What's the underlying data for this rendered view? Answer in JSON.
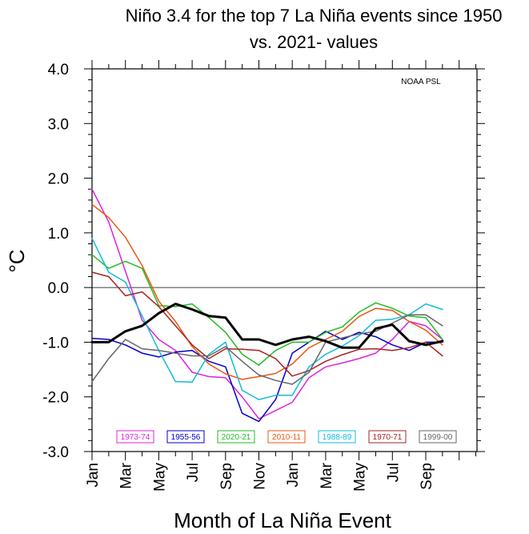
{
  "chart_data": {
    "type": "line",
    "title_line1": "Niño 3.4 for the top 7 La Niña events since 1950",
    "title_line2": "vs. 2021- values",
    "xlabel": "Month of La Niña Event",
    "ylabel": "°C",
    "credit": "NOAA PSL",
    "ylim": [
      -3.0,
      4.0
    ],
    "yticks": [
      "4.0",
      "3.0",
      "2.0",
      "1.0",
      "0.0",
      "-1.0",
      "-2.0",
      "-3.0"
    ],
    "ytick_values": [
      4,
      3,
      2,
      1,
      0,
      -1,
      -2,
      -3
    ],
    "xtick_labels": [
      "Jan",
      "Mar",
      "May",
      "Jul",
      "Sep",
      "Nov",
      "Jan",
      "Mar",
      "May",
      "Jul",
      "Sep"
    ],
    "xtick_index": [
      0,
      2,
      4,
      6,
      8,
      10,
      12,
      14,
      16,
      18,
      20
    ],
    "n_months": 22,
    "zero_line": true,
    "series": [
      {
        "name": "1973-74",
        "color": "#dd22dd",
        "width": 1.5,
        "values": [
          1.8,
          1.2,
          0.3,
          -0.6,
          -0.95,
          -1.15,
          -1.55,
          -1.63,
          -1.65,
          -2.0,
          -2.4,
          -2.25,
          -2.1,
          -1.65,
          -1.45,
          -1.38,
          -1.3,
          -1.2,
          -0.95,
          -0.62,
          -0.7,
          -0.95
        ]
      },
      {
        "name": "1955-56",
        "color": "#0000cc",
        "width": 1.5,
        "values": [
          -0.93,
          -0.95,
          -1.05,
          -1.2,
          -1.27,
          -1.18,
          -1.15,
          -1.35,
          -1.45,
          -2.3,
          -2.45,
          -2.05,
          -1.2,
          -1.0,
          -0.8,
          -0.95,
          -0.82,
          -0.9,
          -1.05,
          -1.15,
          -1.0,
          -1.0
        ]
      },
      {
        "name": "2020-21",
        "color": "#22bb22",
        "width": 1.5,
        "values": [
          0.6,
          0.35,
          0.48,
          0.35,
          -0.33,
          -0.35,
          -0.3,
          -0.55,
          -0.82,
          -1.22,
          -1.42,
          -1.15,
          -1.0,
          -1.0,
          -0.82,
          -0.72,
          -0.45,
          -0.28,
          -0.38,
          -0.52,
          -0.55,
          -0.95
        ]
      },
      {
        "name": "2010-11",
        "color": "#ee5511",
        "width": 1.5,
        "values": [
          1.52,
          1.28,
          0.92,
          0.4,
          -0.25,
          -0.62,
          -1.08,
          -1.4,
          -1.58,
          -1.68,
          -1.63,
          -1.57,
          -1.4,
          -1.1,
          -0.95,
          -0.8,
          -0.53,
          -0.38,
          -0.42,
          -0.62,
          -0.78,
          -1.05
        ]
      },
      {
        "name": "1988-89",
        "color": "#11bbdd",
        "width": 1.5,
        "values": [
          0.9,
          0.28,
          0.1,
          -0.52,
          -1.15,
          -1.72,
          -1.73,
          -1.22,
          -1.0,
          -1.88,
          -2.05,
          -1.97,
          -1.97,
          -1.45,
          -1.22,
          -1.07,
          -0.88,
          -0.6,
          -0.58,
          -0.5,
          -0.3,
          -0.4
        ]
      },
      {
        "name": "1970-71",
        "color": "#aa2222",
        "width": 1.5,
        "values": [
          0.28,
          0.2,
          -0.15,
          -0.08,
          -0.35,
          -0.7,
          -1.05,
          -1.3,
          -1.12,
          -1.13,
          -1.15,
          -1.3,
          -1.62,
          -1.52,
          -1.35,
          -1.23,
          -1.13,
          -1.12,
          -1.15,
          -1.1,
          -1.0,
          -1.25
        ]
      },
      {
        "name": "1999-00",
        "color": "#666666",
        "width": 1.5,
        "values": [
          -1.72,
          -1.3,
          -0.95,
          -1.12,
          -1.15,
          -1.2,
          -1.25,
          -1.25,
          -1.08,
          -1.35,
          -1.6,
          -1.7,
          -1.77,
          -1.55,
          -1.0,
          -0.92,
          -0.85,
          -0.8,
          -0.65,
          -0.5,
          -0.5,
          -0.7
        ]
      },
      {
        "name": "2021-",
        "color": "#000000",
        "width": 3,
        "values": [
          -1.0,
          -1.0,
          -0.8,
          -0.7,
          -0.47,
          -0.3,
          -0.4,
          -0.52,
          -0.55,
          -0.95,
          -0.95,
          -1.05,
          -0.95,
          -0.9,
          -0.98,
          -1.1,
          -1.1,
          -0.75,
          -0.68,
          -0.98,
          -1.05,
          -0.98
        ]
      }
    ],
    "legend": [
      {
        "label": "1973-74",
        "color": "#dd22dd"
      },
      {
        "label": "1955-56",
        "color": "#0000cc"
      },
      {
        "label": "2020-21",
        "color": "#22bb22"
      },
      {
        "label": "2010-11",
        "color": "#ee5511"
      },
      {
        "label": "1988-89",
        "color": "#11bbdd"
      },
      {
        "label": "1970-71",
        "color": "#aa2222"
      },
      {
        "label": "1999-00",
        "color": "#666666"
      }
    ],
    "legend_position": "bottom-inside"
  }
}
